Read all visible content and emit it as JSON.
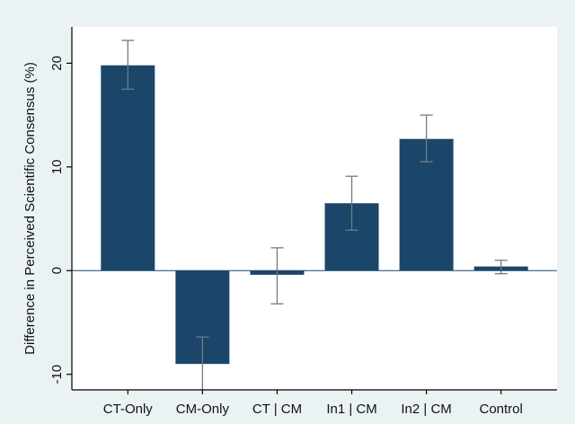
{
  "chart_data": {
    "type": "bar",
    "title": "",
    "xlabel": "",
    "ylabel": "Difference in Perceived Scientific Consensus (%)",
    "categories": [
      "CT-Only",
      "CM-Only",
      "CT | CM",
      "In1 | CM",
      "In2 | CM",
      "Control"
    ],
    "values": [
      19.8,
      -9.0,
      -0.4,
      6.5,
      12.7,
      0.4
    ],
    "error_low": [
      17.5,
      -11.7,
      -3.2,
      3.9,
      10.5,
      -0.3
    ],
    "error_high": [
      22.2,
      -6.4,
      2.2,
      9.1,
      15.0,
      1.0
    ],
    "ylim": [
      -11.5,
      23.5
    ],
    "yticks": [
      -10,
      0,
      10,
      20
    ],
    "grid": false,
    "colors": {
      "bar": "#1b4669",
      "errorbar": "#6f7b84",
      "axis": "#000000",
      "plot_background": "#ffffff",
      "page_background": "#eaf2f3"
    }
  }
}
